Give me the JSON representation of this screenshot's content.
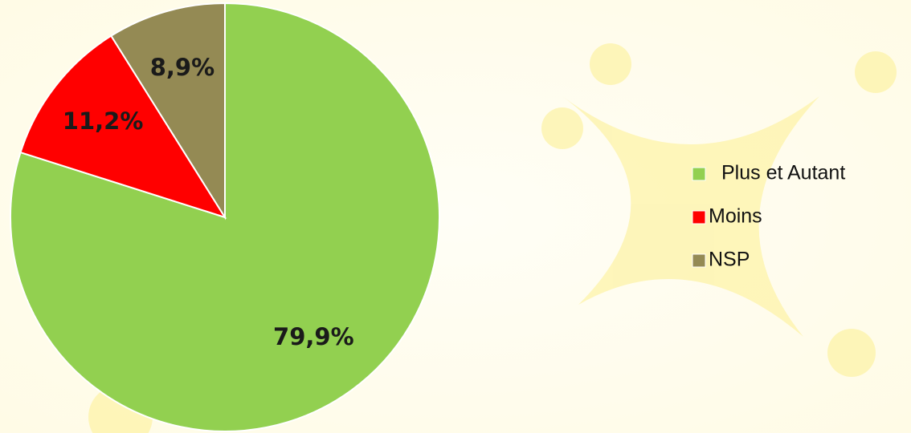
{
  "chart_data": {
    "type": "pie",
    "categories": [
      "Plus et Autant",
      "Moins",
      "NSP"
    ],
    "values": [
      79.9,
      11.2,
      8.9
    ],
    "value_labels": [
      "79,9%",
      "11,2%",
      "8,9%"
    ],
    "colors": [
      "#92d050",
      "#ff0000",
      "#948a54"
    ],
    "legend": "right"
  }
}
